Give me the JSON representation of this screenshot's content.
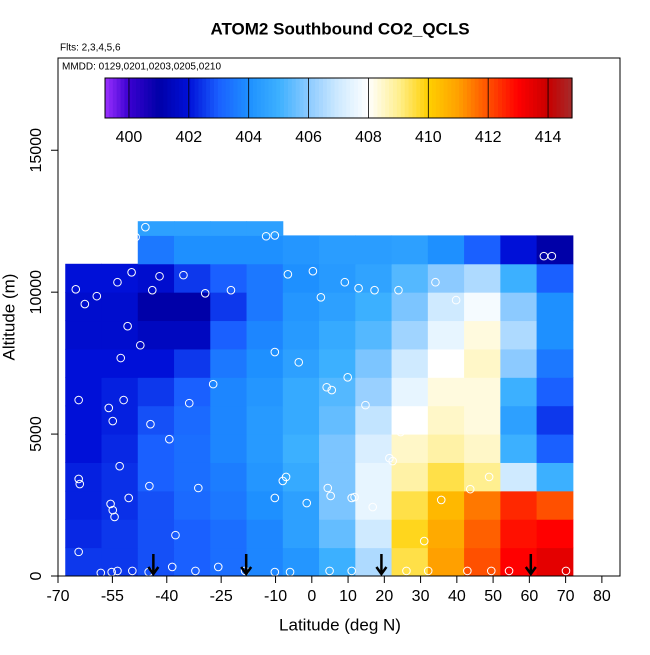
{
  "chart_data": {
    "type": "heatmap",
    "title": "ATOM2 Southbound CO2_QCLS",
    "subtitle": "Flts: 2,3,4,5,6",
    "annotation": "MMDD: 0129,0201,0203,0205,0210",
    "x_label": "Latitude (deg N)",
    "y_label": "Altitude (m)",
    "xlim": [
      -70,
      85
    ],
    "ylim": [
      0,
      18250
    ],
    "xticks": [
      -70,
      -55,
      -40,
      -25,
      -10,
      0,
      10,
      20,
      30,
      40,
      50,
      60,
      70,
      80
    ],
    "yticks": [
      0,
      5000,
      10000,
      15000
    ],
    "x_edges": [
      -68,
      -58,
      -48,
      -38,
      -28,
      -18,
      -8,
      2,
      12,
      22,
      32,
      42,
      52,
      62,
      72
    ],
    "y_edges": [
      0,
      1000,
      2000,
      3000,
      4000,
      5000,
      6000,
      7000,
      8000,
      9000,
      10000,
      11000,
      12000,
      12500
    ],
    "values": [
      [
        402.5,
        402.5,
        402.8,
        403,
        403.3,
        403.8,
        404.2,
        405,
        406.5,
        409.5,
        411,
        412,
        413,
        413.5
      ],
      [
        402.3,
        402.5,
        402.8,
        403,
        403.3,
        403.8,
        404.5,
        405.5,
        407,
        409.8,
        410.8,
        411.8,
        412.8,
        413
      ],
      [
        402.2,
        402.4,
        402.8,
        403.2,
        403.5,
        404,
        404.5,
        405.8,
        407.5,
        409.5,
        410.5,
        411.5,
        412.5,
        412
      ],
      [
        402.2,
        402.4,
        403,
        403.3,
        403.6,
        404.2,
        404.8,
        405.8,
        407.5,
        408.8,
        409.5,
        409,
        407,
        405
      ],
      [
        402,
        402.3,
        403,
        403.3,
        403.8,
        404.3,
        405,
        405.8,
        407.2,
        408.5,
        408.8,
        408.5,
        405,
        403
      ],
      [
        402,
        402.2,
        402.8,
        403.2,
        403.8,
        404.3,
        404.8,
        405.5,
        406.8,
        408,
        408.5,
        408.3,
        404.5,
        402.5
      ],
      [
        402,
        402.2,
        402.5,
        403,
        403.8,
        404.2,
        404.8,
        405.3,
        406.2,
        407.5,
        408.3,
        408.3,
        405,
        403
      ],
      [
        402,
        402,
        402,
        402.5,
        403.5,
        404,
        404.5,
        405,
        405.8,
        407,
        408,
        408.5,
        406,
        403.5
      ],
      [
        401.8,
        401.8,
        401.5,
        401.5,
        403,
        403.8,
        404.3,
        404.8,
        405.3,
        406.3,
        407.5,
        408.3,
        406.5,
        404
      ],
      [
        401.8,
        401.8,
        401,
        401,
        402.5,
        403.5,
        404.2,
        404.5,
        405,
        405.8,
        407,
        407.8,
        406,
        404
      ],
      [
        402,
        402,
        401.8,
        402.5,
        403,
        403.5,
        404,
        404.3,
        404.6,
        405.3,
        406,
        406.5,
        405,
        403
      ],
      [
        null,
        null,
        403.5,
        404,
        404,
        404,
        404.2,
        404.4,
        404.4,
        404.5,
        404,
        403,
        402,
        401
      ],
      [
        null,
        null,
        404.5,
        404.5,
        404.5,
        404.5,
        null,
        null,
        null,
        null,
        null,
        null,
        null,
        null
      ]
    ],
    "clim": [
      399.2,
      414.8
    ],
    "cticks": [
      400,
      402,
      404,
      406,
      408,
      410,
      412,
      414
    ],
    "colorscale": [
      [
        399.2,
        "#9b30ff"
      ],
      [
        400,
        "#3a00d0"
      ],
      [
        401,
        "#0000a8"
      ],
      [
        402,
        "#0010d8"
      ],
      [
        403,
        "#1a60ff"
      ],
      [
        404,
        "#1e90ff"
      ],
      [
        405,
        "#3cb0ff"
      ],
      [
        406,
        "#8ccaff"
      ],
      [
        407,
        "#cfeaff"
      ],
      [
        408,
        "#ffffff"
      ],
      [
        409,
        "#ffef90"
      ],
      [
        410,
        "#ffd000"
      ],
      [
        411,
        "#ffa000"
      ],
      [
        412,
        "#ff5000"
      ],
      [
        413,
        "#ff0000"
      ],
      [
        414,
        "#c80000"
      ],
      [
        414.8,
        "#a52a2a"
      ]
    ],
    "points": {
      "color": "#ffffff",
      "x": [
        -45.9,
        -48.6,
        -12.6,
        -10.2,
        -65.1,
        -62.6,
        -59.3,
        -53.6,
        -49.7,
        -42,
        -35.4,
        -29.4,
        -22.3,
        -44,
        -50.8,
        -47.3,
        -52.7,
        -10.2,
        -6.6,
        0.3,
        2.5,
        9.1,
        12.9,
        17.3,
        23.9,
        34.1,
        39.8,
        -3.6,
        9.9,
        -27.2,
        -64.3,
        -51.9,
        -33.8,
        4.1,
        5.5,
        14.8,
        -56,
        -54.9,
        -44.5,
        24.5,
        -39.3,
        21.4,
        22.3,
        -53,
        -7.1,
        -8,
        -64.3,
        -64,
        -44.8,
        -31.3,
        4.4,
        48.9,
        43.7,
        -55.5,
        -50.5,
        -10.2,
        -1.4,
        5.2,
        11,
        11.8,
        35.7,
        -54.9,
        -54.4,
        16.8,
        -37.6,
        31,
        -64.3,
        -58.2,
        -55.2,
        -53.6,
        -49.5,
        -45,
        -38.5,
        -32.1,
        -25.8,
        -18.4,
        -10.2,
        -6,
        4.9,
        11,
        26.1,
        32.1,
        42.9,
        49.5,
        54.4,
        70.1,
        64,
        66.2
      ],
      "y": [
        12290,
        11940,
        11970,
        12000,
        10100,
        9580,
        9860,
        10350,
        10700,
        10560,
        10600,
        9960,
        10070,
        10070,
        8800,
        8130,
        7680,
        7890,
        10630,
        10740,
        9820,
        10350,
        10140,
        10070,
        10070,
        10350,
        9720,
        7530,
        7000,
        6760,
        6200,
        6200,
        6090,
        6650,
        6550,
        6020,
        5920,
        5460,
        5350,
        5070,
        4820,
        4150,
        4050,
        3870,
        3490,
        3350,
        3420,
        3240,
        3170,
        3100,
        3100,
        3490,
        3060,
        2540,
        2750,
        2750,
        2570,
        2820,
        2750,
        2780,
        2680,
        2320,
        2080,
        2430,
        1440,
        1230,
        850,
        110,
        140,
        180,
        180,
        140,
        320,
        180,
        320,
        180,
        140,
        140,
        180,
        180,
        180,
        180,
        180,
        180,
        180,
        180,
        11270,
        11270
      ]
    },
    "arrows": {
      "color": "#000000",
      "x": [
        -43.7,
        -18.1,
        19.2,
        60.4
      ]
    }
  }
}
